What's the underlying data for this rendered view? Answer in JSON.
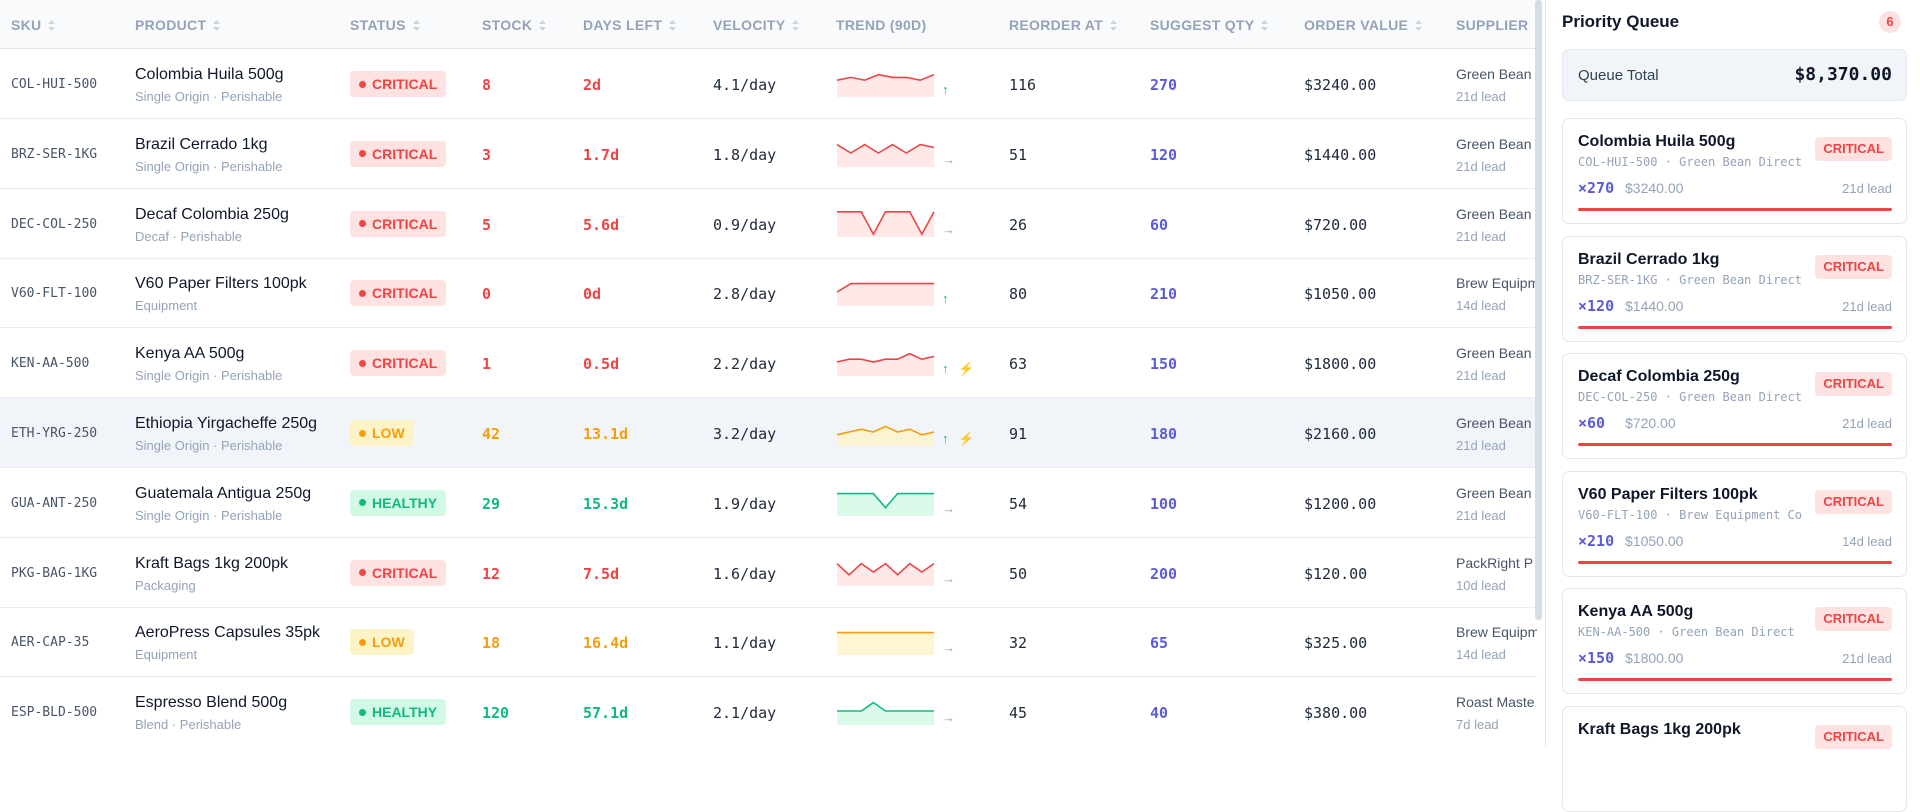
{
  "table": {
    "columns": [
      {
        "label": "SKU",
        "sortable": true,
        "x": 11
      },
      {
        "label": "PRODUCT",
        "sortable": true
      },
      {
        "label": "STATUS",
        "sortable": true
      },
      {
        "label": "STOCK",
        "sortable": true
      },
      {
        "label": "DAYS LEFT",
        "sortable": true
      },
      {
        "label": "VELOCITY",
        "sortable": true
      },
      {
        "label": "TREND (90D)",
        "sortable": false
      },
      {
        "label": "REORDER AT",
        "sortable": true
      },
      {
        "label": "SUGGEST QTY",
        "sortable": true
      },
      {
        "label": "ORDER VALUE",
        "sortable": true
      },
      {
        "label": "SUPPLIER",
        "sortable": false
      }
    ],
    "trend_range": [
      0,
      10
    ],
    "rows": [
      {
        "sku": "COL-HUI-500",
        "product": "Colombia Huila 500g",
        "meta": "Single Origin · Perishable",
        "status": "CRITICAL",
        "stock": "8",
        "days_left": "2d",
        "velocity": "4.1/day",
        "trend": [
          6,
          7,
          6,
          8,
          7,
          7,
          6,
          8
        ],
        "trend_icons": [
          "↑"
        ],
        "reorder_at": "116",
        "suggest_qty": "270",
        "order_value": "$3240.00",
        "supplier": "Green Bean Direct",
        "lead": "21d lead"
      },
      {
        "sku": "BRZ-SER-1KG",
        "product": "Brazil Cerrado 1kg",
        "meta": "Single Origin · Perishable",
        "status": "CRITICAL",
        "stock": "3",
        "days_left": "1.7d",
        "velocity": "1.8/day",
        "trend": [
          8,
          5,
          8,
          5,
          8,
          5,
          8,
          7
        ],
        "trend_icons": [
          "→"
        ],
        "reorder_at": "51",
        "suggest_qty": "120",
        "order_value": "$1440.00",
        "supplier": "Green Bean Direct",
        "lead": "21d lead"
      },
      {
        "sku": "DEC-COL-250",
        "product": "Decaf Colombia 250g",
        "meta": "Decaf · Perishable",
        "status": "CRITICAL",
        "stock": "5",
        "days_left": "5.6d",
        "velocity": "0.9/day",
        "trend": [
          9,
          9,
          9,
          1,
          9,
          9,
          9,
          1,
          9
        ],
        "trend_icons": [
          "→"
        ],
        "reorder_at": "26",
        "suggest_qty": "60",
        "order_value": "$720.00",
        "supplier": "Green Bean Direct",
        "lead": "21d lead"
      },
      {
        "sku": "V60-FLT-100",
        "product": "V60 Paper Filters 100pk",
        "meta": "Equipment",
        "status": "CRITICAL",
        "stock": "0",
        "days_left": "0d",
        "velocity": "2.8/day",
        "trend": [
          5,
          8,
          8,
          8,
          8,
          8,
          8,
          8
        ],
        "trend_icons": [
          "↑"
        ],
        "reorder_at": "80",
        "suggest_qty": "210",
        "order_value": "$1050.00",
        "supplier": "Brew Equipment Co",
        "lead": "14d lead"
      },
      {
        "sku": "KEN-AA-500",
        "product": "Kenya AA 500g",
        "meta": "Single Origin · Perishable",
        "status": "CRITICAL",
        "stock": "1",
        "days_left": "0.5d",
        "velocity": "2.2/day",
        "trend": [
          5,
          6,
          6,
          5,
          6,
          6,
          8,
          6,
          7
        ],
        "trend_icons": [
          "↑",
          "⚡"
        ],
        "reorder_at": "63",
        "suggest_qty": "150",
        "order_value": "$1800.00",
        "supplier": "Green Bean Direct",
        "lead": "21d lead"
      },
      {
        "sku": "ETH-YRG-250",
        "product": "Ethiopia Yirgacheffe 250g",
        "meta": "Single Origin · Perishable",
        "status": "LOW",
        "stock": "42",
        "days_left": "13.1d",
        "velocity": "3.2/day",
        "trend": [
          4,
          5,
          6,
          5,
          7,
          5,
          6,
          4,
          5
        ],
        "trend_icons": [
          "↑",
          "⚡"
        ],
        "reorder_at": "91",
        "suggest_qty": "180",
        "order_value": "$2160.00",
        "supplier": "Green Bean Direct",
        "lead": "21d lead",
        "selected": true
      },
      {
        "sku": "GUA-ANT-250",
        "product": "Guatemala Antigua 250g",
        "meta": "Single Origin · Perishable",
        "status": "HEALTHY",
        "stock": "29",
        "days_left": "15.3d",
        "velocity": "1.9/day",
        "trend": [
          8,
          8,
          8,
          8,
          3,
          8,
          8,
          8,
          8
        ],
        "trend_icons": [
          "→"
        ],
        "reorder_at": "54",
        "suggest_qty": "100",
        "order_value": "$1200.00",
        "supplier": "Green Bean Direct",
        "lead": "21d lead"
      },
      {
        "sku": "PKG-BAG-1KG",
        "product": "Kraft Bags 1kg 200pk",
        "meta": "Packaging",
        "status": "CRITICAL",
        "stock": "12",
        "days_left": "7.5d",
        "velocity": "1.6/day",
        "trend": [
          8,
          4,
          8,
          5,
          8,
          4,
          8,
          5,
          8
        ],
        "trend_icons": [
          "→"
        ],
        "reorder_at": "50",
        "suggest_qty": "200",
        "order_value": "$120.00",
        "supplier": "PackRight P",
        "lead": "10d lead"
      },
      {
        "sku": "AER-CAP-35",
        "product": "AeroPress Capsules 35pk",
        "meta": "Equipment",
        "status": "LOW",
        "stock": "18",
        "days_left": "16.4d",
        "velocity": "1.1/day",
        "trend": [
          8,
          8,
          8,
          8,
          8,
          8,
          8,
          8
        ],
        "trend_icons": [
          "→"
        ],
        "reorder_at": "32",
        "suggest_qty": "65",
        "order_value": "$325.00",
        "supplier": "Brew Equipment Co",
        "lead": "14d lead"
      },
      {
        "sku": "ESP-BLD-500",
        "product": "Espresso Blend 500g",
        "meta": "Blend · Perishable",
        "status": "HEALTHY",
        "stock": "120",
        "days_left": "57.1d",
        "velocity": "2.1/day",
        "trend": [
          5,
          5,
          5,
          8,
          5,
          5,
          5,
          5,
          5
        ],
        "trend_icons": [
          "→"
        ],
        "reorder_at": "45",
        "suggest_qty": "40",
        "order_value": "$380.00",
        "supplier": "Roast Maste",
        "lead": "7d lead"
      }
    ]
  },
  "queue": {
    "title": "Priority Queue",
    "count": "6",
    "total_label": "Queue Total",
    "total": "$8,370.00",
    "items": [
      {
        "name": "Colombia Huila 500g",
        "sku_line": "COL-HUI-500 · Green Bean Direct",
        "status": "CRITICAL",
        "qty": "×270",
        "value": "$3240.00",
        "lead": "21d lead"
      },
      {
        "name": "Brazil Cerrado 1kg",
        "sku_line": "BRZ-SER-1KG · Green Bean Direct",
        "status": "CRITICAL",
        "qty": "×120",
        "value": "$1440.00",
        "lead": "21d lead"
      },
      {
        "name": "Decaf Colombia 250g",
        "sku_line": "DEC-COL-250 · Green Bean Direct",
        "status": "CRITICAL",
        "qty": "×60",
        "value": "$720.00",
        "lead": "21d lead"
      },
      {
        "name": "V60 Paper Filters 100pk",
        "sku_line": "V60-FLT-100 · Brew Equipment Co",
        "status": "CRITICAL",
        "qty": "×210",
        "value": "$1050.00",
        "lead": "14d lead"
      },
      {
        "name": "Kenya AA 500g",
        "sku_line": "KEN-AA-500 · Green Bean Direct",
        "status": "CRITICAL",
        "qty": "×150",
        "value": "$1800.00",
        "lead": "21d lead"
      },
      {
        "name": "Kraft Bags 1kg 200pk",
        "status": "CRITICAL"
      }
    ]
  }
}
